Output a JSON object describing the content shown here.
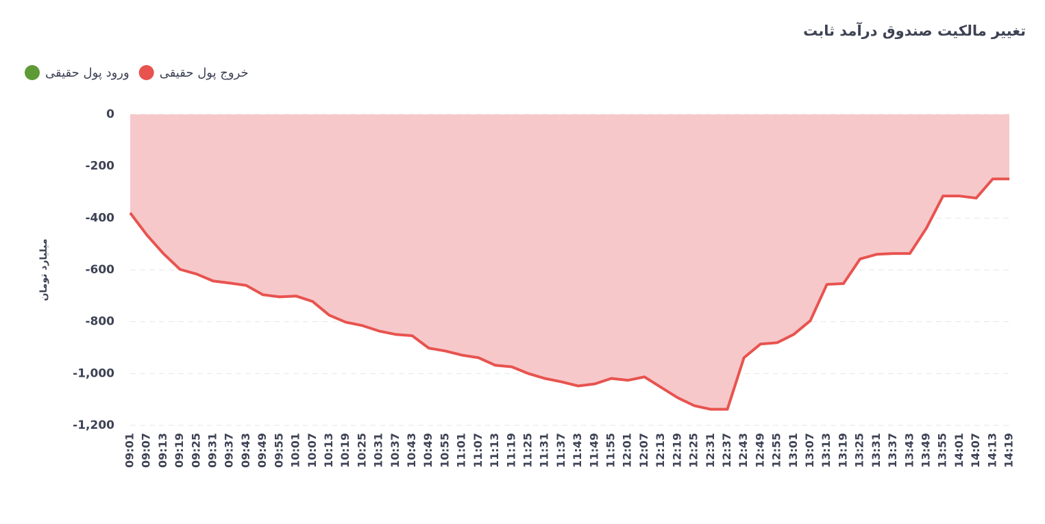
{
  "chart_data": {
    "type": "area",
    "title": "تغییر مالکیت صندوق درآمد ثابت",
    "y_label": "میلیارد تومان",
    "categories": [
      "09:01",
      "09:07",
      "09:13",
      "09:19",
      "09:25",
      "09:31",
      "09:37",
      "09:43",
      "09:49",
      "09:55",
      "10:01",
      "10:07",
      "10:13",
      "10:19",
      "10:25",
      "10:31",
      "10:37",
      "10:43",
      "10:49",
      "10:55",
      "11:01",
      "11:07",
      "11:13",
      "11:19",
      "11:25",
      "11:31",
      "11:37",
      "11:43",
      "11:49",
      "11:55",
      "12:01",
      "12:07",
      "12:13",
      "12:19",
      "12:25",
      "12:31",
      "12:37",
      "12:43",
      "12:49",
      "12:55",
      "13:01",
      "13:07",
      "13:13",
      "13:19",
      "13:25",
      "13:31",
      "13:37",
      "13:43",
      "13:49",
      "13:55",
      "14:01",
      "14:07",
      "14:13",
      "14:19"
    ],
    "series": [
      {
        "name": "خروج پول حقیقی",
        "color": "#e8534f",
        "fill": "#f7c8ca",
        "values": [
          -380,
          -465,
          -537,
          -598,
          -616,
          -643,
          -651,
          -660,
          -696,
          -704,
          -701,
          -722,
          -775,
          -802,
          -815,
          -836,
          -849,
          -854,
          -902,
          -913,
          -929,
          -939,
          -968,
          -974,
          -1000,
          -1019,
          -1032,
          -1048,
          -1040,
          -1019,
          -1026,
          -1013,
          -1053,
          -1093,
          -1124,
          -1138,
          -1138,
          -939,
          -886,
          -881,
          -849,
          -796,
          -656,
          -653,
          -558,
          -540,
          -537,
          -537,
          -439,
          -315,
          -315,
          -323,
          -249,
          -249
        ]
      },
      {
        "name": "ورود پول حقیقی",
        "color": "#5e9a36",
        "fill": "#cfe3c1",
        "values": [
          null,
          null,
          null,
          null,
          null,
          null,
          null,
          null,
          null,
          null,
          null,
          null,
          null,
          null,
          null,
          null,
          null,
          null,
          null,
          null,
          null,
          null,
          null,
          null,
          null,
          null,
          null,
          null,
          null,
          null,
          null,
          null,
          null,
          null,
          null,
          null,
          null,
          null,
          null,
          null,
          null,
          null,
          null,
          null,
          null,
          null,
          null,
          null,
          null,
          null,
          null,
          null,
          null,
          null
        ]
      }
    ],
    "ylim": [
      -1200,
      0
    ],
    "yticks": [
      0,
      -200,
      -400,
      -600,
      -800,
      {
        "value": -1000,
        "label": "-1,000"
      },
      {
        "value": -1200,
        "label": "-1,200"
      }
    ],
    "grid": true
  }
}
